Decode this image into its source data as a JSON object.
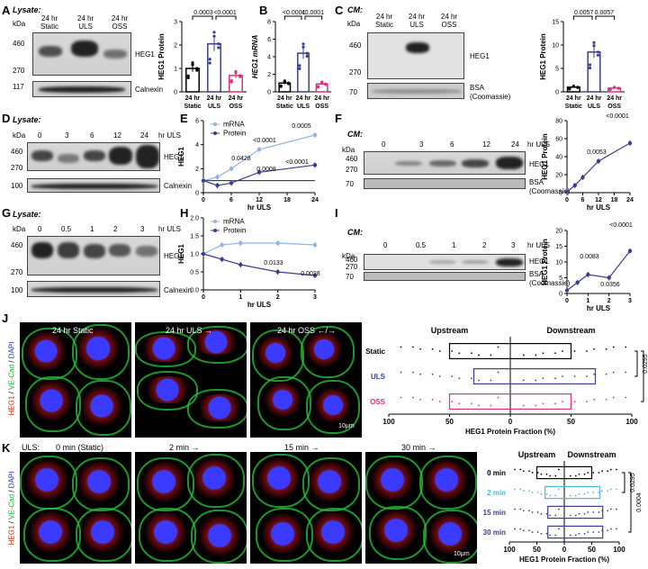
{
  "panels": {
    "A": "A",
    "B": "B",
    "C": "C",
    "D": "D",
    "E": "E",
    "F": "F",
    "G": "G",
    "H": "H",
    "I": "I",
    "J": "J",
    "K": "K"
  },
  "A": {
    "title": "Lysate:",
    "kda": "kDa",
    "cols": [
      "24 hr Static",
      "24 hr ULS",
      "24 hr OSS"
    ],
    "markers": [
      "460",
      "270",
      "117"
    ],
    "prot": "HEG1",
    "ctrl": "Calnexin",
    "chart_data": {
      "type": "bar",
      "categories": [
        "24 hr Static",
        "24 hr ULS",
        "24 hr OSS"
      ],
      "values": [
        1.0,
        2.05,
        0.7
      ],
      "ylabel": "HEG1 Protein",
      "ylim": [
        0,
        3
      ],
      "yticks": [
        "0",
        "1",
        "2",
        "3"
      ],
      "pvals": [
        "0.0003",
        "<0.0001"
      ]
    }
  },
  "B": {
    "chart_data": {
      "type": "bar",
      "categories": [
        "24 hr Static",
        "24 hr ULS",
        "24 hr OSS"
      ],
      "values": [
        1.0,
        4.4,
        0.9
      ],
      "ylabel": "HEG1 mRNA",
      "ylim": [
        0,
        8
      ],
      "yticks": [
        "0",
        "2",
        "4",
        "6",
        "8"
      ],
      "pvals": [
        "<0.0001",
        "<0.0001"
      ]
    }
  },
  "C": {
    "title": "CM:",
    "kda": "kDa",
    "cols": [
      "24 hr Static",
      "24 hr ULS",
      "24 hr OSS"
    ],
    "markers": [
      "460",
      "270",
      "70"
    ],
    "prot": "HEG1",
    "ctrl": "BSA",
    "ctrl2": "(Coomassie)",
    "chart_data": {
      "type": "bar",
      "categories": [
        "24 hr Static",
        "24 hr ULS",
        "24 hr OSS"
      ],
      "values": [
        1.0,
        8.5,
        0.8
      ],
      "ylabel": "HEG1 Protein",
      "ylim": [
        0,
        15
      ],
      "yticks": [
        "0",
        "5",
        "10",
        "15"
      ],
      "pvals": [
        "0.0057",
        "0.0057"
      ]
    }
  },
  "D": {
    "title": "Lysate:",
    "kda": "kDa",
    "cols": [
      "0",
      "3",
      "6",
      "12",
      "24"
    ],
    "unit": "hr ULS",
    "markers": [
      "460",
      "270",
      "100"
    ],
    "prot": "HEG1",
    "ctrl": "Calnexin"
  },
  "E": {
    "chart_data": {
      "type": "line",
      "x": [
        0,
        3,
        6,
        12,
        24
      ],
      "series": [
        {
          "name": "mRNA",
          "values": [
            1.0,
            1.3,
            2.0,
            3.6,
            4.8
          ]
        },
        {
          "name": "Protein",
          "values": [
            1.0,
            0.6,
            0.8,
            1.7,
            2.3
          ]
        }
      ],
      "xlabel": "hr ULS",
      "ylabel": "HEG1",
      "xticks": [
        "0",
        "6",
        "12",
        "18",
        "24"
      ],
      "yticks": [
        "0",
        "2",
        "4",
        "6"
      ],
      "ylim": [
        0,
        6
      ],
      "pvals": [
        "0.0428",
        "<0.0001",
        "0.0005",
        "0.0008",
        "<0.0001"
      ]
    }
  },
  "F": {
    "title": "CM:",
    "kda": "kDa",
    "cols": [
      "0",
      "3",
      "6",
      "12",
      "24"
    ],
    "unit": "hr ULS",
    "markers": [
      "460",
      "270",
      "70"
    ],
    "prot": "HEG1",
    "ctrl": "BSA",
    "ctrl2": "(Coomassie)",
    "chart_data": {
      "type": "line",
      "x": [
        0,
        3,
        6,
        12,
        24
      ],
      "series": [
        {
          "name": "",
          "values": [
            1,
            8,
            17,
            35,
            55
          ]
        }
      ],
      "xlabel": "hr ULS",
      "ylabel": "HEG1 Protein",
      "xticks": [
        "0",
        "6",
        "12",
        "18",
        "24"
      ],
      "yticks": [
        "0",
        "20",
        "40",
        "60",
        "80"
      ],
      "ylim": [
        0,
        80
      ],
      "pvals": [
        "0.0053",
        "<0.0001"
      ]
    }
  },
  "G": {
    "title": "Lysate:",
    "kda": "kDa",
    "cols": [
      "0",
      "0.5",
      "1",
      "2",
      "3"
    ],
    "unit": "hr ULS",
    "markers": [
      "460",
      "270",
      "100"
    ],
    "prot": "HEG1",
    "ctrl": "Calnexin"
  },
  "H": {
    "chart_data": {
      "type": "line",
      "x": [
        0,
        0.5,
        1,
        2,
        3
      ],
      "series": [
        {
          "name": "mRNA",
          "values": [
            1.0,
            1.25,
            1.3,
            1.3,
            1.25
          ]
        },
        {
          "name": "Protein",
          "values": [
            1.0,
            0.85,
            0.7,
            0.5,
            0.4
          ]
        }
      ],
      "xlabel": "hr ULS",
      "ylabel": "HEG1",
      "xticks": [
        "0",
        "1",
        "2",
        "3"
      ],
      "yticks": [
        "0.0",
        "0.5",
        "1.0",
        "1.5",
        "2.0"
      ],
      "ylim": [
        0,
        2
      ],
      "pvals": [
        "0.0133",
        "0.0028"
      ]
    }
  },
  "I": {
    "title": "CM:",
    "kda": "kDa",
    "cols": [
      "0",
      "0.5",
      "1",
      "2",
      "3"
    ],
    "unit": "hr ULS",
    "markers": [
      "460",
      "270",
      "70"
    ],
    "prot": "HEG1",
    "ctrl": "BSA",
    "ctrl2": "(Coomassie)",
    "chart_data": {
      "type": "line",
      "x": [
        0,
        0.5,
        1,
        2,
        3
      ],
      "series": [
        {
          "name": "",
          "values": [
            1,
            3.5,
            6,
            5,
            13.5
          ]
        }
      ],
      "xlabel": "hr ULS",
      "ylabel": "HEG1 Protein",
      "xticks": [
        "0",
        "1",
        "2",
        "3"
      ],
      "yticks": [
        "0",
        "5",
        "10",
        "15",
        "20"
      ],
      "ylim": [
        0,
        20
      ],
      "pvals": [
        "0.0083",
        "0.0356",
        "<0.0001"
      ]
    }
  },
  "J": {
    "imgs": [
      "24 hr Static",
      "24 hr ULS →",
      "24 hr OSS ←/→"
    ],
    "stain": [
      "HEG1",
      "VE-Cad",
      "DAPI"
    ],
    "scale": "10μm",
    "up": "Upstream",
    "down": "Downstream",
    "chart_data": {
      "type": "box",
      "categories": [
        "Static",
        "ULS",
        "OSS"
      ],
      "upstream": [
        50,
        30,
        50
      ],
      "downstream": [
        50,
        70,
        50
      ],
      "xlabel": "HEG1 Protein Fraction (%)",
      "xticks": [
        "100",
        "50",
        "0",
        "50",
        "100"
      ],
      "pvals": [
        "0.0295",
        "0.0000"
      ],
      "colors": [
        "#000000",
        "#3a3f8f",
        "#e0307a"
      ]
    }
  },
  "K": {
    "uls": "ULS:",
    "imgs": [
      "0 min (Static)",
      "2 min →",
      "15 min →",
      "30 min →"
    ],
    "stain": [
      "HEG1",
      "VE-Cad",
      "DAPI"
    ],
    "scale": "10μm",
    "up": "Upstream",
    "down": "Downstream",
    "chart_data": {
      "type": "box",
      "categories": [
        "0 min",
        "2 min",
        "15 min",
        "30 min"
      ],
      "upstream": [
        50,
        35,
        30,
        30
      ],
      "downstream": [
        50,
        65,
        70,
        70
      ],
      "xlabel": "HEG1 Protein Fraction (%)",
      "xticks": [
        "100",
        "50",
        "0",
        "50",
        "100"
      ],
      "pvals": [
        "0.0295",
        "0.0004"
      ],
      "colors": [
        "#000000",
        "#4fb7e0",
        "#3a3f8f",
        "#3a3f8f"
      ]
    }
  }
}
